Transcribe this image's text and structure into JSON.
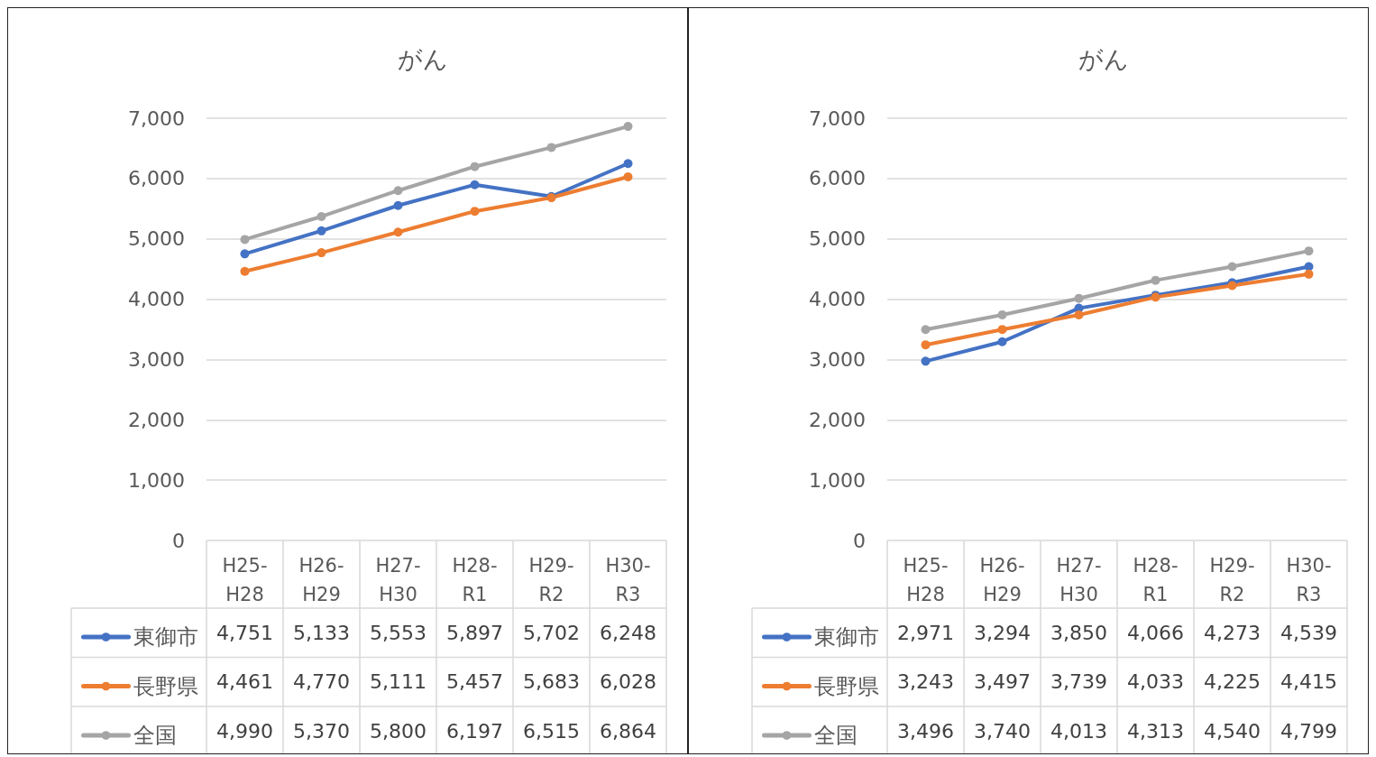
{
  "chart_data": [
    {
      "type": "line",
      "title": "がん",
      "categories": [
        "H25-H28",
        "H26-H29",
        "H27-H30",
        "H28-R1",
        "H29-R2",
        "H30-R3"
      ],
      "ylim": [
        0,
        7000
      ],
      "yticks": [
        0,
        {
          "value": 1000,
          "label": "1,000"
        },
        {
          "value": 2000,
          "label": "2,000"
        },
        {
          "value": 3000,
          "label": "3,000"
        },
        {
          "value": 4000,
          "label": "4,000"
        },
        {
          "value": 5000,
          "label": "5,000"
        },
        {
          "value": 6000,
          "label": "6,000"
        },
        {
          "value": 7000,
          "label": "7,000"
        }
      ],
      "grid": "y",
      "legend": "bottom left",
      "marker": "circle",
      "series": [
        {
          "name": "東御市",
          "color": "#4472c4",
          "values": [
            4751,
            5133,
            5553,
            5897,
            5702,
            6248
          ],
          "value_labels": [
            "4,751",
            "5,133",
            "5,553",
            "5,897",
            "5,702",
            "6,248"
          ]
        },
        {
          "name": "長野県",
          "color": "#ed7d31",
          "values": [
            4461,
            4770,
            5111,
            5457,
            5683,
            6028
          ],
          "value_labels": [
            "4,461",
            "4,770",
            "5,111",
            "5,457",
            "5,683",
            "6,028"
          ]
        },
        {
          "name": "全国",
          "color": "#a5a5a5",
          "values": [
            4990,
            5370,
            5800,
            6197,
            6515,
            6864
          ],
          "value_labels": [
            "4,990",
            "5,370",
            "5,800",
            "6,197",
            "6,515",
            "6,864"
          ]
        }
      ]
    },
    {
      "type": "line",
      "title": "がん",
      "categories": [
        "H25-H28",
        "H26-H29",
        "H27-H30",
        "H28-R1",
        "H29-R2",
        "H30-R3"
      ],
      "ylim": [
        0,
        7000
      ],
      "yticks": [
        0,
        {
          "value": 1000,
          "label": "1,000"
        },
        {
          "value": 2000,
          "label": "2,000"
        },
        {
          "value": 3000,
          "label": "3,000"
        },
        {
          "value": 4000,
          "label": "4,000"
        },
        {
          "value": 5000,
          "label": "5,000"
        },
        {
          "value": 6000,
          "label": "6,000"
        },
        {
          "value": 7000,
          "label": "7,000"
        }
      ],
      "grid": "y",
      "legend": "bottom left",
      "marker": "circle",
      "series": [
        {
          "name": "東御市",
          "color": "#4472c4",
          "values": [
            2971,
            3294,
            3850,
            4066,
            4273,
            4539
          ],
          "value_labels": [
            "2,971",
            "3,294",
            "3,850",
            "4,066",
            "4,273",
            "4,539"
          ]
        },
        {
          "name": "長野県",
          "color": "#ed7d31",
          "values": [
            3243,
            3497,
            3739,
            4033,
            4225,
            4415
          ],
          "value_labels": [
            "3,243",
            "3,497",
            "3,739",
            "4,033",
            "4,225",
            "4,415"
          ]
        },
        {
          "name": "全国",
          "color": "#a5a5a5",
          "values": [
            3496,
            3740,
            4013,
            4313,
            4540,
            4799
          ],
          "value_labels": [
            "3,496",
            "3,740",
            "4,013",
            "4,313",
            "4,540",
            "4,799"
          ]
        }
      ]
    }
  ]
}
